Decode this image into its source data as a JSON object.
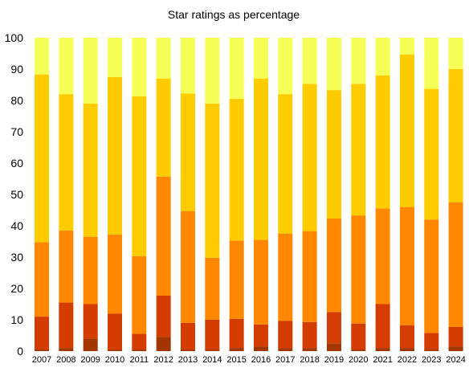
{
  "chart_data": {
    "type": "bar",
    "stacked": true,
    "title": "Star ratings as percentage",
    "xlabel": "",
    "ylabel": "",
    "ylim": [
      0,
      100
    ],
    "yticks": [
      0,
      10,
      20,
      30,
      40,
      50,
      60,
      70,
      80,
      90,
      100
    ],
    "grid": false,
    "legend": "none",
    "categories": [
      "2007",
      "2008",
      "2009",
      "2010",
      "2011",
      "2012",
      "2013",
      "2014",
      "2015",
      "2016",
      "2017",
      "2018",
      "2019",
      "2020",
      "2021",
      "2022",
      "2023",
      "2024"
    ],
    "series": [
      {
        "color": "#a33500",
        "values": [
          0.5,
          1.0,
          4.0,
          0.5,
          0.5,
          4.5,
          0.5,
          0.5,
          1.0,
          1.5,
          1.0,
          1.0,
          2.5,
          0.5,
          1.0,
          1.0,
          0.5,
          1.5
        ]
      },
      {
        "color": "#d43c00",
        "values": [
          10.5,
          14.5,
          11.0,
          11.5,
          5.0,
          13.2,
          8.5,
          9.5,
          9.3,
          7.0,
          8.7,
          8.3,
          10.0,
          8.3,
          14.0,
          7.2,
          5.3,
          6.2
        ]
      },
      {
        "color": "#ff8800",
        "values": [
          23.8,
          23.0,
          21.5,
          25.2,
          24.8,
          38.0,
          35.7,
          19.8,
          25.0,
          27.0,
          27.8,
          29.0,
          29.8,
          34.5,
          30.5,
          37.8,
          36.2,
          39.8
        ]
      },
      {
        "color": "#ffcc00",
        "values": [
          53.5,
          43.5,
          42.5,
          50.3,
          51.0,
          31.3,
          37.5,
          49.2,
          45.2,
          51.5,
          44.5,
          47.0,
          41.0,
          42.0,
          42.5,
          48.7,
          41.7,
          42.5
        ]
      },
      {
        "color": "#f5ff55",
        "values": [
          11.7,
          18.0,
          21.0,
          12.5,
          18.7,
          13.0,
          17.8,
          21.0,
          19.5,
          13.0,
          18.0,
          14.7,
          16.7,
          14.7,
          12.0,
          5.3,
          16.3,
          10.0
        ]
      }
    ]
  }
}
